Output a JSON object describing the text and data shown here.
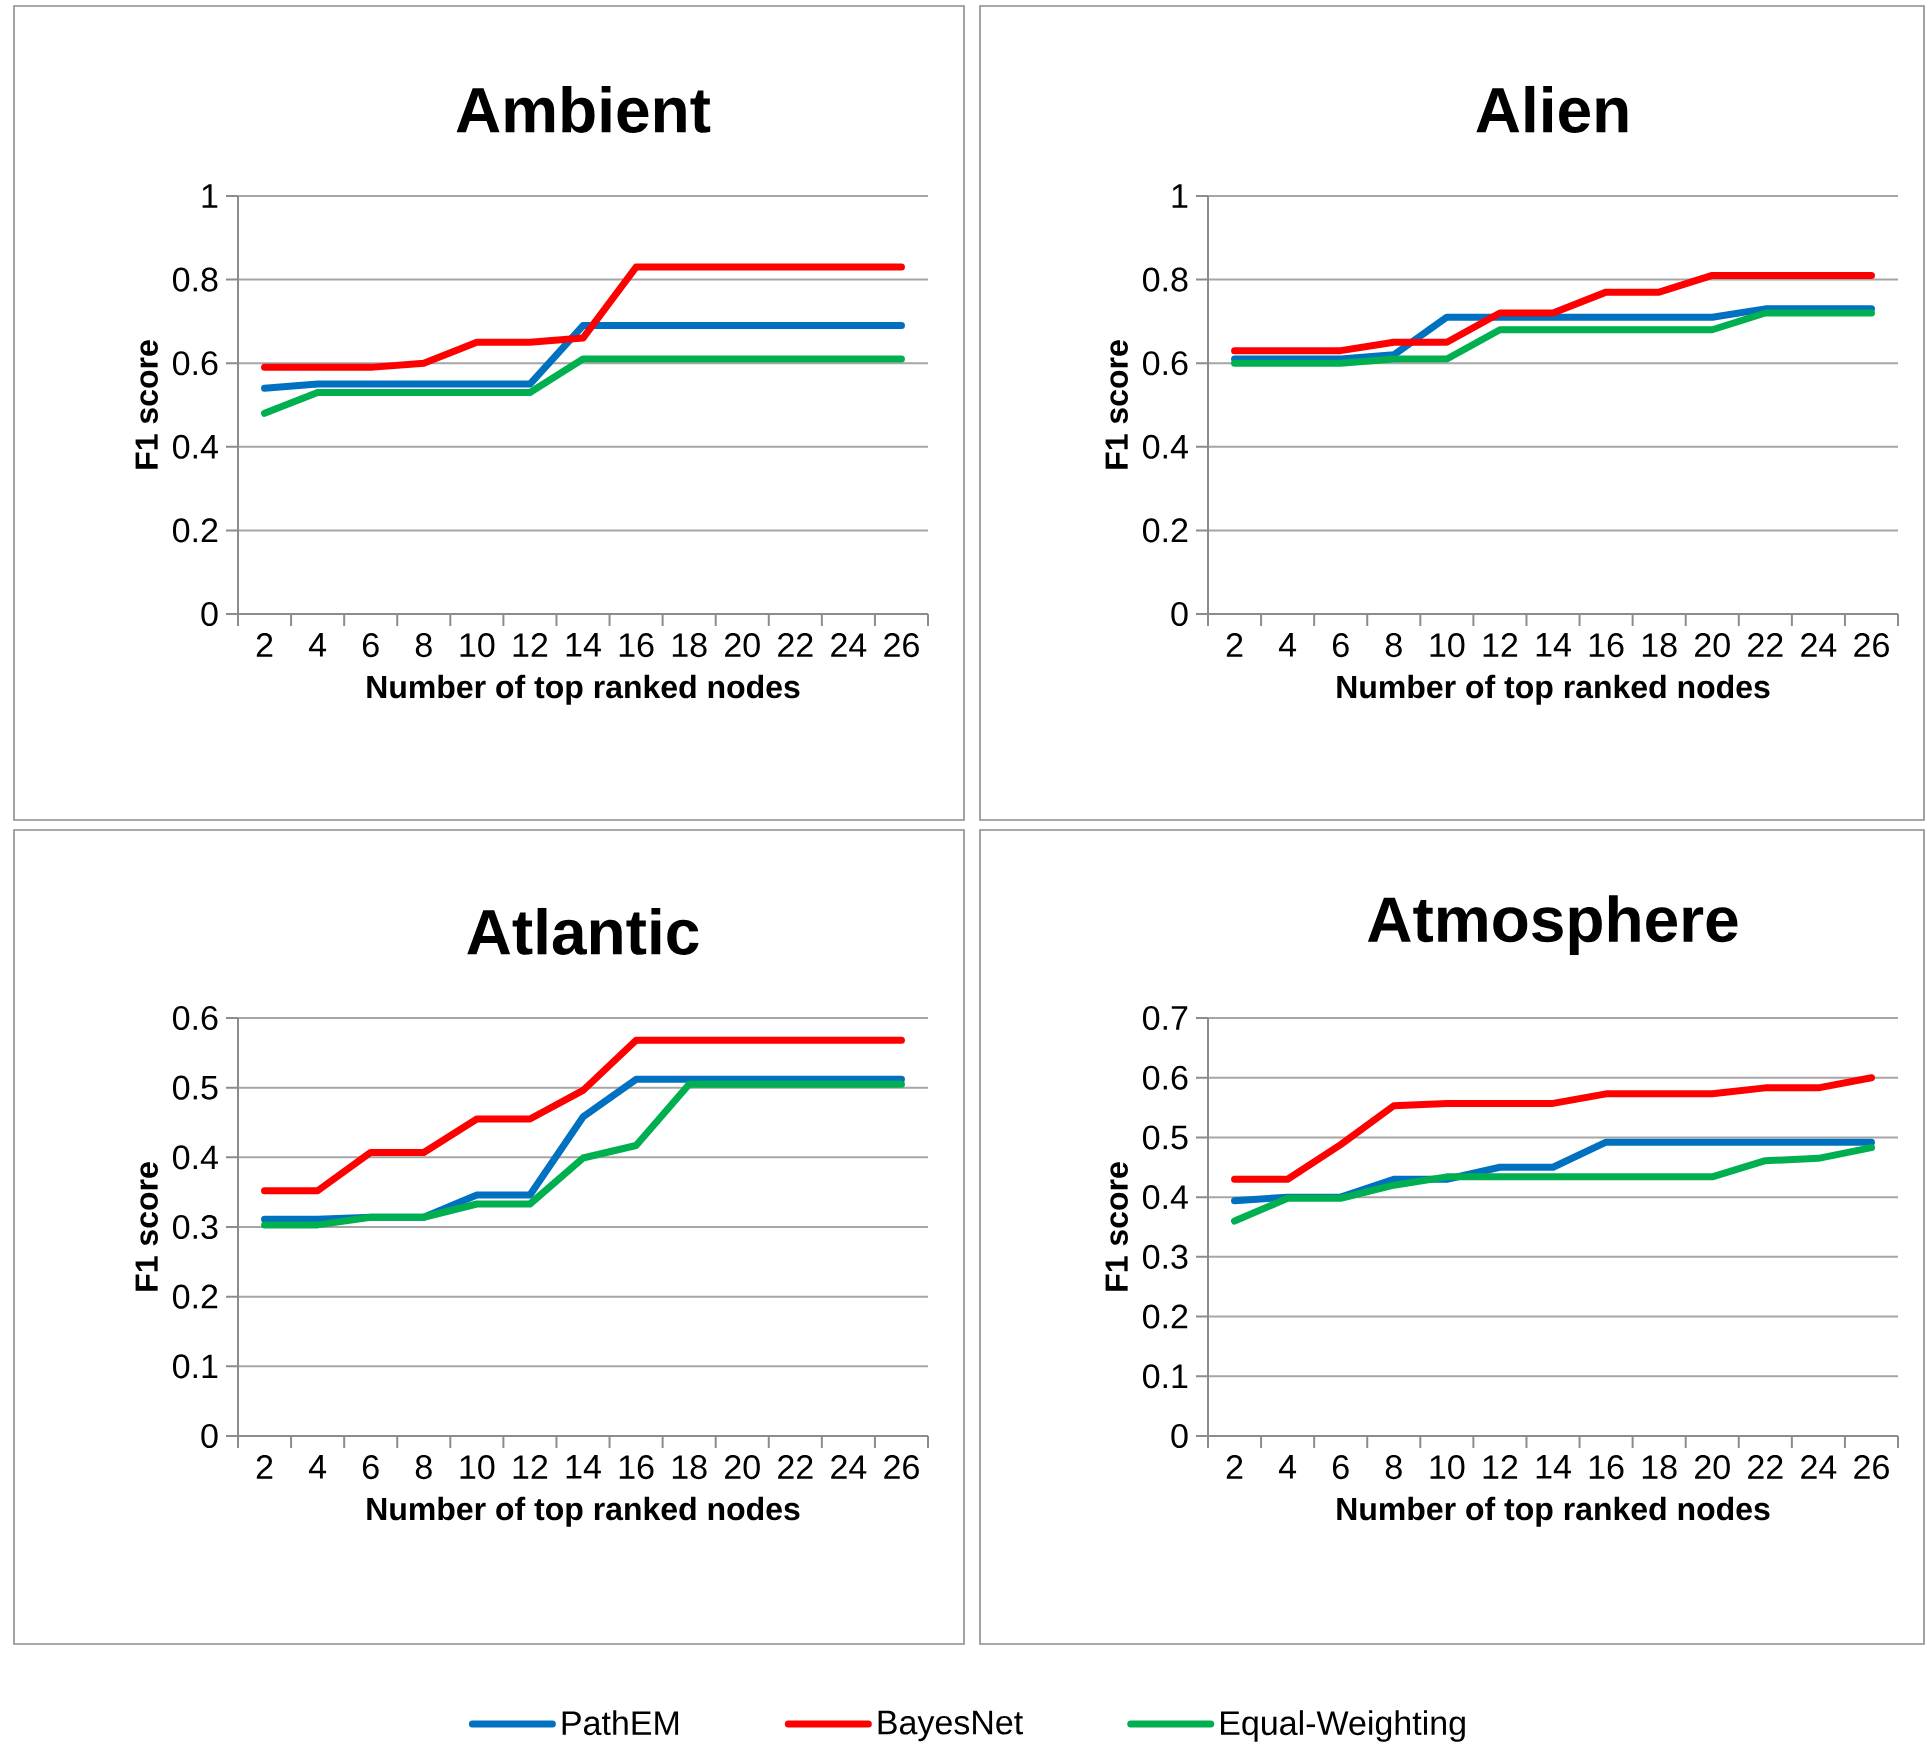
{
  "chart_data": [
    {
      "type": "line",
      "title": "Ambient",
      "xlabel": "Number of top ranked nodes",
      "ylabel": "F1 score",
      "categories": [
        "2",
        "4",
        "6",
        "8",
        "10",
        "12",
        "14",
        "16",
        "18",
        "20",
        "22",
        "24",
        "26"
      ],
      "ylim": [
        0,
        1
      ],
      "yticks": [
        0,
        0.2,
        0.4,
        0.6,
        0.8,
        1
      ],
      "grid": "y",
      "series": [
        {
          "color": "#0070c0",
          "values": [
            0.54,
            0.55,
            0.55,
            0.55,
            0.55,
            0.55,
            0.69,
            0.69,
            0.69,
            0.69,
            0.69,
            0.69,
            0.69
          ]
        },
        {
          "color": "#ff0000",
          "values": [
            0.59,
            0.59,
            0.59,
            0.6,
            0.65,
            0.65,
            0.66,
            0.83,
            0.83,
            0.83,
            0.83,
            0.83,
            0.83
          ]
        },
        {
          "color": "#00b050",
          "values": [
            0.48,
            0.53,
            0.53,
            0.53,
            0.53,
            0.53,
            0.61,
            0.61,
            0.61,
            0.61,
            0.61,
            0.61,
            0.61
          ]
        }
      ]
    },
    {
      "type": "line",
      "title": "Alien",
      "xlabel": "Number of top ranked nodes",
      "ylabel": "F1 score",
      "categories": [
        "2",
        "4",
        "6",
        "8",
        "10",
        "12",
        "14",
        "16",
        "18",
        "20",
        "22",
        "24",
        "26"
      ],
      "ylim": [
        0,
        1
      ],
      "yticks": [
        0,
        0.2,
        0.4,
        0.6,
        0.8,
        1
      ],
      "grid": "y",
      "series": [
        {
          "color": "#0070c0",
          "values": [
            0.61,
            0.61,
            0.61,
            0.62,
            0.71,
            0.71,
            0.71,
            0.71,
            0.71,
            0.71,
            0.73,
            0.73,
            0.73
          ]
        },
        {
          "color": "#ff0000",
          "values": [
            0.63,
            0.63,
            0.63,
            0.65,
            0.65,
            0.72,
            0.72,
            0.77,
            0.77,
            0.81,
            0.81,
            0.81,
            0.81
          ]
        },
        {
          "color": "#00b050",
          "values": [
            0.6,
            0.6,
            0.6,
            0.61,
            0.61,
            0.68,
            0.68,
            0.68,
            0.68,
            0.68,
            0.72,
            0.72,
            0.72
          ]
        }
      ]
    },
    {
      "type": "line",
      "title": "Atlantic",
      "xlabel": "Number of top ranked nodes",
      "ylabel": "F1 score",
      "categories": [
        "2",
        "4",
        "6",
        "8",
        "10",
        "12",
        "14",
        "16",
        "18",
        "20",
        "22",
        "24",
        "26"
      ],
      "ylim": [
        0,
        0.6
      ],
      "yticks": [
        0,
        0.1,
        0.2,
        0.3,
        0.4,
        0.5,
        0.6
      ],
      "grid": "y",
      "series": [
        {
          "color": "#0070c0",
          "values": [
            0.311,
            0.311,
            0.314,
            0.314,
            0.346,
            0.346,
            0.458,
            0.512,
            0.512,
            0.512,
            0.512,
            0.512,
            0.512
          ]
        },
        {
          "color": "#ff0000",
          "values": [
            0.352,
            0.352,
            0.407,
            0.407,
            0.455,
            0.455,
            0.496,
            0.568,
            0.568,
            0.568,
            0.568,
            0.568,
            0.568
          ]
        },
        {
          "color": "#00b050",
          "values": [
            0.303,
            0.303,
            0.314,
            0.314,
            0.333,
            0.333,
            0.399,
            0.417,
            0.505,
            0.505,
            0.505,
            0.505,
            0.505
          ]
        }
      ]
    },
    {
      "type": "line",
      "title": "Atmosphere",
      "xlabel": "Number of top ranked nodes",
      "ylabel": "F1 score",
      "categories": [
        "2",
        "4",
        "6",
        "8",
        "10",
        "12",
        "14",
        "16",
        "18",
        "20",
        "22",
        "24",
        "26"
      ],
      "ylim": [
        0,
        0.7
      ],
      "yticks": [
        0,
        0.1,
        0.2,
        0.3,
        0.4,
        0.5,
        0.6,
        0.7
      ],
      "grid": "y",
      "legend": "bottom",
      "series": [
        {
          "name": "PathEM",
          "color": "#0070c0",
          "values": [
            0.394,
            0.4,
            0.4,
            0.43,
            0.43,
            0.45,
            0.45,
            0.492,
            0.492,
            0.492,
            0.492,
            0.492,
            0.492
          ]
        },
        {
          "name": "BayesNet",
          "color": "#ff0000",
          "values": [
            0.43,
            0.43,
            0.488,
            0.553,
            0.557,
            0.557,
            0.557,
            0.573,
            0.573,
            0.573,
            0.583,
            0.583,
            0.6
          ]
        },
        {
          "name": "Equal-Weighting",
          "color": "#00b050",
          "values": [
            0.36,
            0.398,
            0.398,
            0.42,
            0.434,
            0.434,
            0.434,
            0.434,
            0.434,
            0.434,
            0.461,
            0.465,
            0.483
          ]
        }
      ]
    }
  ]
}
